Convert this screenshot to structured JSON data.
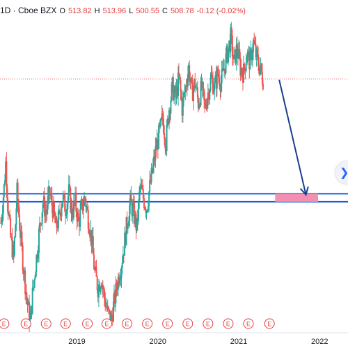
{
  "legend": {
    "symbol": "1D · Cboe BZX",
    "open_label": "O",
    "open": "513.82",
    "high_label": "H",
    "high": "513.96",
    "low_label": "L",
    "low": "500.55",
    "close_label": "C",
    "close": "508.78",
    "change": "-0.12 (-0.02%)"
  },
  "colors": {
    "up": "#26a69a",
    "down": "#ef5350",
    "level_line": "#1e5bd8",
    "arrow": "#1a3d8f",
    "target_box": "#f48fb1",
    "price_line": "#e33d3d",
    "earnings": "#e33d3d"
  },
  "chart_data": {
    "type": "candlestick",
    "title": "",
    "xlabel": "",
    "ylabel": "",
    "x_ticks": [
      "2019",
      "2020",
      "2021",
      "2022"
    ],
    "x_tick_values": [
      2019.0,
      2020.0,
      2021.0,
      2022.0
    ],
    "xlim": [
      2018.05,
      2022.35
    ],
    "ylim": [
      255,
      560
    ],
    "series": [
      {
        "values": [
          [
            2018.06,
            365
          ],
          [
            2018.1,
            400
          ],
          [
            2018.12,
            425
          ],
          [
            2018.15,
            380
          ],
          [
            2018.18,
            350
          ],
          [
            2018.22,
            330
          ],
          [
            2018.26,
            395
          ],
          [
            2018.3,
            355
          ],
          [
            2018.34,
            320
          ],
          [
            2018.38,
            290
          ],
          [
            2018.42,
            265
          ],
          [
            2018.46,
            300
          ],
          [
            2018.5,
            330
          ],
          [
            2018.54,
            360
          ],
          [
            2018.58,
            385
          ],
          [
            2018.62,
            375
          ],
          [
            2018.66,
            395
          ],
          [
            2018.7,
            380
          ],
          [
            2018.74,
            360
          ],
          [
            2018.78,
            370
          ],
          [
            2018.82,
            390
          ],
          [
            2018.86,
            380
          ],
          [
            2018.9,
            395
          ],
          [
            2018.94,
            375
          ],
          [
            2018.98,
            385
          ],
          [
            2019.02,
            365
          ],
          [
            2019.06,
            380
          ],
          [
            2019.1,
            390
          ],
          [
            2019.14,
            370
          ],
          [
            2019.18,
            350
          ],
          [
            2019.22,
            315
          ],
          [
            2019.26,
            300
          ],
          [
            2019.3,
            310
          ],
          [
            2019.34,
            290
          ],
          [
            2019.38,
            275
          ],
          [
            2019.42,
            268
          ],
          [
            2019.46,
            285
          ],
          [
            2019.5,
            305
          ],
          [
            2019.54,
            320
          ],
          [
            2019.58,
            340
          ],
          [
            2019.62,
            365
          ],
          [
            2019.66,
            385
          ],
          [
            2019.7,
            375
          ],
          [
            2019.74,
            360
          ],
          [
            2019.78,
            400
          ],
          [
            2019.82,
            390
          ],
          [
            2019.86,
            380
          ],
          [
            2019.9,
            400
          ],
          [
            2019.94,
            420
          ],
          [
            2019.98,
            440
          ],
          [
            2020.02,
            455
          ],
          [
            2020.06,
            470
          ],
          [
            2020.1,
            445
          ],
          [
            2020.14,
            480
          ],
          [
            2020.18,
            500
          ],
          [
            2020.22,
            490
          ],
          [
            2020.26,
            510
          ],
          [
            2020.3,
            480
          ],
          [
            2020.34,
            500
          ],
          [
            2020.38,
            520
          ],
          [
            2020.42,
            495
          ],
          [
            2020.46,
            505
          ],
          [
            2020.5,
            485
          ],
          [
            2020.54,
            500
          ],
          [
            2020.58,
            480
          ],
          [
            2020.62,
            495
          ],
          [
            2020.66,
            510
          ],
          [
            2020.7,
            500
          ],
          [
            2020.74,
            515
          ],
          [
            2020.78,
            505
          ],
          [
            2020.82,
            520
          ],
          [
            2020.86,
            535
          ],
          [
            2020.9,
            550
          ],
          [
            2020.94,
            525
          ],
          [
            2020.98,
            540
          ],
          [
            2021.02,
            520
          ],
          [
            2021.06,
            515
          ],
          [
            2021.1,
            535
          ],
          [
            2021.14,
            525
          ],
          [
            2021.18,
            545
          ],
          [
            2021.22,
            530
          ],
          [
            2021.26,
            520
          ],
          [
            2021.3,
            509
          ]
        ]
      }
    ],
    "horizontal_levels": [
      394,
      386
    ],
    "current_price_line": 508.78,
    "arrow": {
      "from": [
        2021.5,
        508
      ],
      "to": [
        2021.83,
        393
      ]
    },
    "target_zone": {
      "x": [
        2021.45,
        2021.98
      ],
      "y": [
        386,
        394
      ]
    },
    "earnings_markers": [
      2018.1,
      2018.37,
      2018.62,
      2018.86,
      2019.13,
      2019.37,
      2019.62,
      2019.87,
      2020.12,
      2020.37,
      2020.62,
      2020.87,
      2021.12,
      2021.38
    ],
    "earnings_label": "E"
  }
}
